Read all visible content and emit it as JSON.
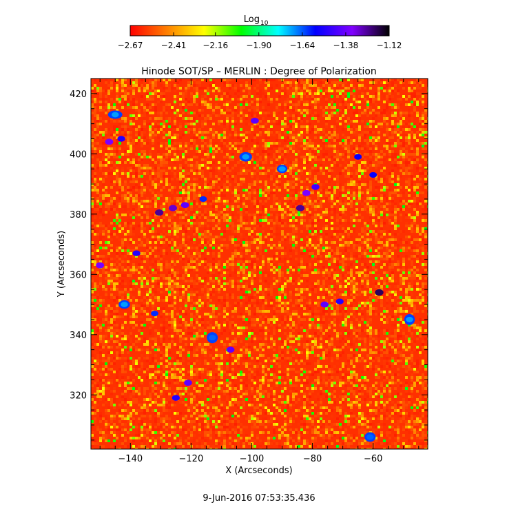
{
  "chart_data": {
    "type": "heatmap",
    "title": "Hinode SOT/SP – MERLIN : Degree of Polarization",
    "xlabel": "X (Arcseconds)",
    "ylabel": "Y (Arcseconds)",
    "xlim": [
      -153,
      -42
    ],
    "ylim": [
      302,
      425
    ],
    "x_ticks": [
      -140,
      -120,
      -100,
      -80,
      -60
    ],
    "y_ticks": [
      320,
      340,
      360,
      380,
      400,
      420
    ],
    "colorbar": {
      "label": "Log",
      "label_subscript": "10",
      "range": [
        -2.67,
        -1.12
      ],
      "tick_values": [
        -2.67,
        -2.41,
        -2.16,
        -1.9,
        -1.64,
        -1.38,
        -1.12
      ],
      "tick_labels": [
        "−2.67",
        "−2.41",
        "−2.16",
        "−1.90",
        "−1.64",
        "−1.38",
        "−1.12"
      ],
      "colors": [
        "#ff0000",
        "#ff8000",
        "#ffff00",
        "#00ff00",
        "#00ffff",
        "#0000ff",
        "#8000ff",
        "#000000"
      ]
    },
    "features": [
      {
        "x": -130.5,
        "y": 380.5,
        "level": -1.25
      },
      {
        "x": -126,
        "y": 382,
        "level": -1.3
      },
      {
        "x": -122,
        "y": 383,
        "level": -1.4
      },
      {
        "x": -84,
        "y": 382,
        "level": -1.25
      },
      {
        "x": -82,
        "y": 387,
        "level": -1.35
      },
      {
        "x": -79,
        "y": 389,
        "level": -1.45
      },
      {
        "x": -58,
        "y": 354,
        "level": -1.2
      },
      {
        "x": -150,
        "y": 363,
        "level": -1.35
      },
      {
        "x": -147,
        "y": 404,
        "level": -1.35
      },
      {
        "x": -143,
        "y": 405,
        "level": -1.5
      },
      {
        "x": -99,
        "y": 411,
        "level": -1.4
      },
      {
        "x": -138,
        "y": 367,
        "level": -1.5
      },
      {
        "x": -76,
        "y": 350,
        "level": -1.4
      },
      {
        "x": -71,
        "y": 351,
        "level": -1.5
      },
      {
        "x": -107,
        "y": 335,
        "level": -1.4
      },
      {
        "x": -121,
        "y": 324,
        "level": -1.4
      },
      {
        "x": -125,
        "y": 319,
        "level": -1.5
      },
      {
        "x": -65,
        "y": 399,
        "level": -1.55
      },
      {
        "x": -60,
        "y": 393,
        "level": -1.55
      },
      {
        "x": -132,
        "y": 347,
        "level": -1.6
      },
      {
        "x": -142,
        "y": 350,
        "level": -1.7
      },
      {
        "x": -61,
        "y": 306,
        "level": -1.65
      },
      {
        "x": -48,
        "y": 345,
        "level": -1.7
      },
      {
        "x": -113,
        "y": 339,
        "level": -1.65
      },
      {
        "x": -145,
        "y": 413,
        "level": -1.7
      },
      {
        "x": -116,
        "y": 385,
        "level": -1.6
      },
      {
        "x": -102,
        "y": 399,
        "level": -1.7
      },
      {
        "x": -90,
        "y": 395,
        "level": -1.7
      }
    ]
  },
  "footer": {
    "timestamp": "9-Jun-2016 07:53:35.436"
  }
}
